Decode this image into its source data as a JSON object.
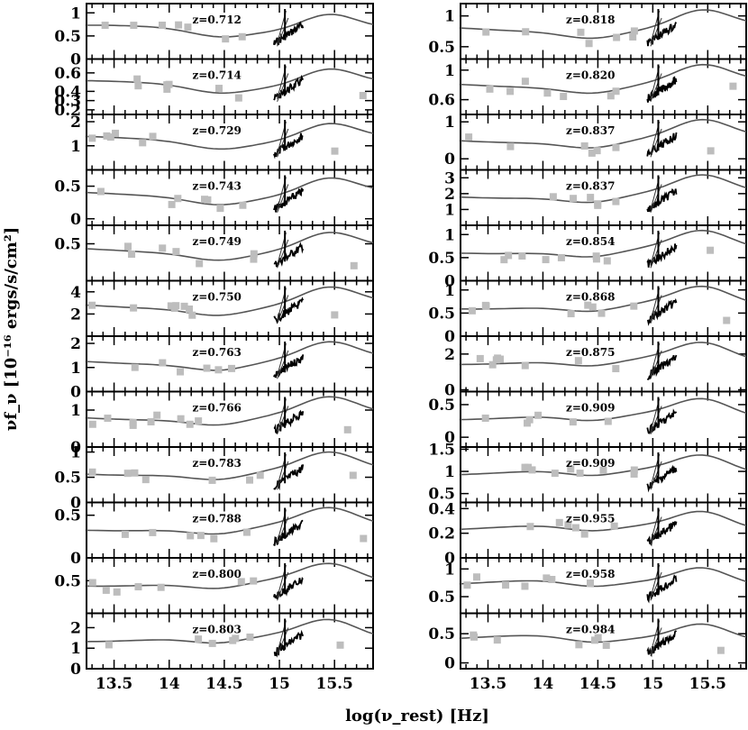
{
  "chart_data": {
    "type": "line",
    "xlabel": "log(ν_rest) [Hz]",
    "ylabel": "νf_ν [10⁻¹⁶ ergs/s/cm²]",
    "xlim": [
      13.25,
      15.85
    ],
    "x_ticks": [
      13.5,
      14,
      14.5,
      15,
      15.5
    ],
    "x_tick_labels": [
      "13.5",
      "14",
      "14.5",
      "15",
      "15.5"
    ],
    "series_legend": [],
    "columns": [
      {
        "panels": [
          {
            "z_label": "z=0.712",
            "ylim": [
              0,
              1.2
            ],
            "yticks": [
              {
                "v": 0,
                "label": "0"
              },
              {
                "v": 0.5,
                "label": "0.5"
              },
              {
                "v": 1,
                "label": "1"
              }
            ]
          },
          {
            "z_label": "z=0.714",
            "ylim": [
              0.15,
              0.75
            ],
            "yticks": [
              {
                "v": 0.2,
                "label": "0.2"
              },
              {
                "v": 0.3,
                "label": "0.3"
              },
              {
                "v": 0.4,
                "label": "0.4"
              },
              {
                "v": 0.6,
                "label": "0.6"
              }
            ]
          },
          {
            "z_label": "z=0.729",
            "ylim": [
              0,
              2.3
            ],
            "yticks": [
              {
                "v": 1,
                "label": "1"
              },
              {
                "v": 2,
                "label": "2"
              }
            ]
          },
          {
            "z_label": "z=0.743",
            "ylim": [
              -0.1,
              0.75
            ],
            "yticks": [
              {
                "v": 0,
                "label": "0"
              },
              {
                "v": 0.5,
                "label": "0.5"
              }
            ]
          },
          {
            "z_label": "z=0.749",
            "ylim": [
              0,
              0.75
            ],
            "yticks": [
              {
                "v": 0.5,
                "label": "0.5"
              }
            ]
          },
          {
            "z_label": "z=0.750",
            "ylim": [
              0,
              5
            ],
            "yticks": [
              {
                "v": 2,
                "label": "2"
              },
              {
                "v": 4,
                "label": "4"
              }
            ]
          },
          {
            "z_label": "z=0.763",
            "ylim": [
              0,
              2.3
            ],
            "yticks": [
              {
                "v": 0,
                "label": "0"
              },
              {
                "v": 1,
                "label": "1"
              },
              {
                "v": 2,
                "label": "2"
              }
            ]
          },
          {
            "z_label": "z=0.766",
            "ylim": [
              0,
              1.5
            ],
            "yticks": [
              {
                "v": 0,
                "label": "0"
              },
              {
                "v": 1,
                "label": "1"
              }
            ]
          },
          {
            "z_label": "z=0.783",
            "ylim": [
              0,
              1.1
            ],
            "yticks": [
              {
                "v": 0,
                "label": "0"
              },
              {
                "v": 0.5,
                "label": "0.5"
              },
              {
                "v": 1,
                "label": "1"
              }
            ]
          },
          {
            "z_label": "z=0.788",
            "ylim": [
              0,
              0.65
            ],
            "yticks": [
              {
                "v": 0,
                "label": "0"
              },
              {
                "v": 0.5,
                "label": "0.5"
              }
            ]
          },
          {
            "z_label": "z=0.800",
            "ylim": [
              0,
              0.85
            ],
            "yticks": [
              {
                "v": 0.5,
                "label": "0.5"
              }
            ]
          },
          {
            "z_label": "z=0.803",
            "ylim": [
              0,
              2.7
            ],
            "yticks": [
              {
                "v": 0,
                "label": "0"
              },
              {
                "v": 1,
                "label": "1"
              },
              {
                "v": 2,
                "label": "2"
              }
            ]
          }
        ]
      },
      {
        "panels": [
          {
            "z_label": "z=0.818",
            "ylim": [
              0.3,
              1.2
            ],
            "yticks": [
              {
                "v": 0.5,
                "label": "0.5"
              },
              {
                "v": 1,
                "label": "1"
              }
            ]
          },
          {
            "z_label": "z=0.820",
            "ylim": [
              0.4,
              1.15
            ],
            "yticks": [
              {
                "v": 0.6,
                "label": "0.6"
              },
              {
                "v": 1,
                "label": "1"
              }
            ]
          },
          {
            "z_label": "z=0.837",
            "ylim": [
              -0.3,
              1.2
            ],
            "yticks": [
              {
                "v": 0,
                "label": "0"
              },
              {
                "v": 1,
                "label": "1"
              }
            ]
          },
          {
            "z_label": "z=0.837",
            "ylim": [
              0,
              3.5
            ],
            "yticks": [
              {
                "v": 1,
                "label": "1"
              },
              {
                "v": 2,
                "label": "2"
              },
              {
                "v": 3,
                "label": "3"
              }
            ]
          },
          {
            "z_label": "z=0.854",
            "ylim": [
              0,
              1.2
            ],
            "yticks": [
              {
                "v": 0,
                "label": "0"
              },
              {
                "v": 0.5,
                "label": "0.5"
              },
              {
                "v": 1,
                "label": "1"
              }
            ]
          },
          {
            "z_label": "z=0.868",
            "ylim": [
              0,
              1.2
            ],
            "yticks": [
              {
                "v": 0,
                "label": "0"
              },
              {
                "v": 0.5,
                "label": "0.5"
              },
              {
                "v": 1,
                "label": "1"
              }
            ]
          },
          {
            "z_label": "z=0.875",
            "ylim": [
              -0.1,
              3
            ],
            "yticks": [
              {
                "v": 0,
                "label": "0"
              },
              {
                "v": 2,
                "label": "2"
              }
            ]
          },
          {
            "z_label": "z=0.909",
            "ylim": [
              -0.15,
              0.7
            ],
            "yticks": [
              {
                "v": 0,
                "label": "0"
              },
              {
                "v": 0.5,
                "label": "0.5"
              }
            ]
          },
          {
            "z_label": "z=0.909",
            "ylim": [
              0.3,
              1.55
            ],
            "yticks": [
              {
                "v": 0.5,
                "label": "0.5"
              },
              {
                "v": 1,
                "label": "1"
              },
              {
                "v": 1.5,
                "label": "1.5"
              }
            ]
          },
          {
            "z_label": "z=0.955",
            "ylim": [
              0,
              0.45
            ],
            "yticks": [
              {
                "v": 0,
                "label": "0"
              },
              {
                "v": 0.2,
                "label": "0.2"
              },
              {
                "v": 0.4,
                "label": "0.4"
              }
            ]
          },
          {
            "z_label": "z=0.958",
            "ylim": [
              0.2,
              1.2
            ],
            "yticks": [
              {
                "v": 0.5,
                "label": "0.5"
              },
              {
                "v": 1,
                "label": "1"
              }
            ]
          },
          {
            "z_label": "z=0.984",
            "ylim": [
              -0.1,
              0.85
            ],
            "yticks": [
              {
                "v": 0,
                "label": "0"
              },
              {
                "v": 0.5,
                "label": "0.5"
              }
            ]
          }
        ]
      }
    ]
  }
}
